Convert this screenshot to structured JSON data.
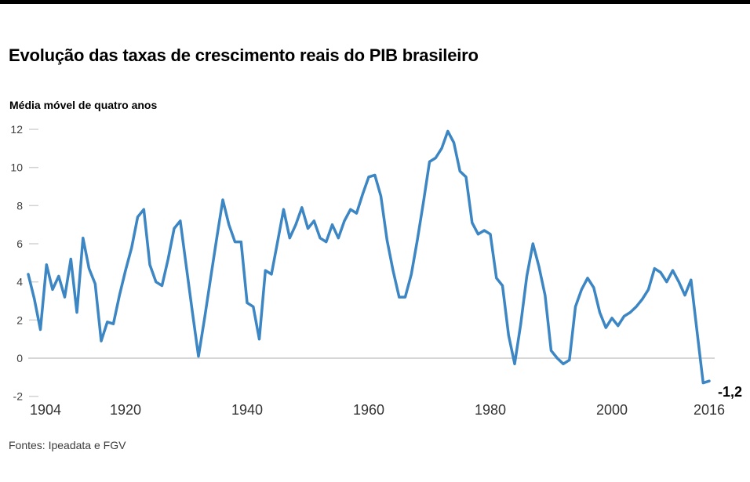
{
  "chart_data": {
    "type": "line",
    "title": "Evolução das taxas de crescimento reais do PIB brasileiro",
    "subtitle": "Média móvel de quatro anos",
    "source": "Fontes: Ipeadata e FGV",
    "line_color": "#3c86c4",
    "grid": "zero-baseline-only",
    "legend_position": "none",
    "xlim": [
      1904,
      2016
    ],
    "ylim": [
      -2,
      12
    ],
    "xticks": [
      1904,
      1920,
      1940,
      1960,
      1980,
      2000,
      2016
    ],
    "yticks": [
      12,
      10,
      8,
      6,
      4,
      2,
      0,
      -2
    ],
    "end_annotation": {
      "text": "-1,2",
      "year": 2016,
      "value": -1.2
    },
    "years": [
      1904,
      1905,
      1906,
      1907,
      1908,
      1909,
      1910,
      1911,
      1912,
      1913,
      1914,
      1915,
      1916,
      1917,
      1918,
      1919,
      1920,
      1921,
      1922,
      1923,
      1924,
      1925,
      1926,
      1927,
      1928,
      1929,
      1930,
      1931,
      1932,
      1933,
      1934,
      1935,
      1936,
      1937,
      1938,
      1939,
      1940,
      1941,
      1942,
      1943,
      1944,
      1945,
      1946,
      1947,
      1948,
      1949,
      1950,
      1951,
      1952,
      1953,
      1954,
      1955,
      1956,
      1957,
      1958,
      1959,
      1960,
      1961,
      1962,
      1963,
      1964,
      1965,
      1966,
      1967,
      1968,
      1969,
      1970,
      1971,
      1972,
      1973,
      1974,
      1975,
      1976,
      1977,
      1978,
      1979,
      1980,
      1981,
      1982,
      1983,
      1984,
      1985,
      1986,
      1987,
      1988,
      1989,
      1990,
      1991,
      1992,
      1993,
      1994,
      1995,
      1996,
      1997,
      1998,
      1999,
      2000,
      2001,
      2002,
      2003,
      2004,
      2005,
      2006,
      2007,
      2008,
      2009,
      2010,
      2011,
      2012,
      2013,
      2014,
      2015,
      2016
    ],
    "values": [
      4.4,
      3.1,
      1.5,
      4.9,
      3.6,
      4.3,
      3.2,
      5.2,
      2.4,
      6.3,
      4.7,
      3.9,
      0.9,
      1.9,
      1.8,
      3.3,
      4.6,
      5.8,
      7.4,
      7.8,
      4.9,
      4.0,
      3.8,
      5.2,
      6.8,
      7.2,
      4.8,
      2.4,
      0.1,
      2.1,
      4.2,
      6.3,
      8.3,
      7.0,
      6.1,
      6.1,
      2.9,
      2.7,
      1.0,
      4.6,
      4.4,
      6.1,
      7.8,
      6.3,
      7.0,
      7.9,
      6.8,
      7.2,
      6.3,
      6.1,
      7.0,
      6.3,
      7.2,
      7.8,
      7.6,
      8.6,
      9.5,
      9.6,
      8.5,
      6.2,
      4.6,
      3.2,
      3.2,
      4.4,
      6.2,
      8.2,
      10.3,
      10.5,
      11.0,
      11.9,
      11.3,
      9.8,
      9.5,
      7.1,
      6.5,
      6.7,
      6.5,
      4.2,
      3.8,
      1.2,
      -0.3,
      1.8,
      4.3,
      6.0,
      4.8,
      3.3,
      0.4,
      0.0,
      -0.3,
      -0.1,
      2.7,
      3.6,
      4.2,
      3.7,
      2.4,
      1.6,
      2.1,
      1.7,
      2.2,
      2.4,
      2.7,
      3.1,
      3.6,
      4.7,
      4.5,
      4.0,
      4.6,
      4.0,
      3.3,
      4.1,
      1.4,
      -1.3,
      -1.2
    ]
  }
}
